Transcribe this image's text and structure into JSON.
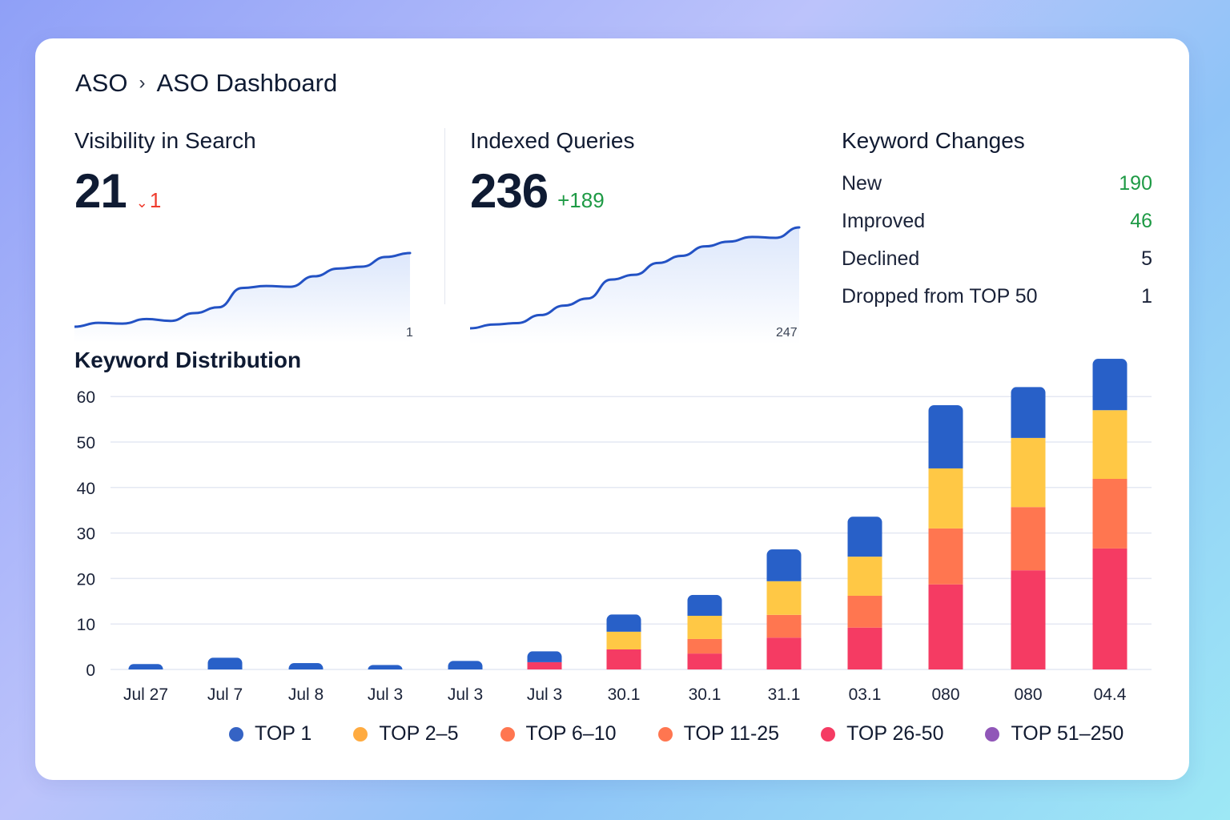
{
  "breadcrumb": {
    "root": "ASO",
    "separator": "›",
    "current": "ASO Dashboard"
  },
  "visibility": {
    "title": "Visibility in Search",
    "value": "21",
    "delta": "1",
    "delta_direction": "down",
    "delta_color": "#ef3b2d",
    "spark_end_label": "1",
    "spark_values": [
      2,
      3,
      2.8,
      4,
      3.5,
      5.5,
      7,
      12,
      12.5,
      12.3,
      15,
      17,
      17.5,
      20,
      21
    ]
  },
  "indexed_queries": {
    "title": "Indexed Queries",
    "value": "236",
    "delta": "+189",
    "delta_direction": "up",
    "delta_color": "#1e9a45",
    "spark_end_label": "247",
    "spark_values": [
      47,
      55,
      58,
      75,
      95,
      110,
      150,
      160,
      185,
      200,
      220,
      230,
      240,
      238,
      260
    ]
  },
  "keyword_changes": {
    "title": "Keyword Changes",
    "rows": [
      {
        "label": "New",
        "value": "190",
        "color": "green"
      },
      {
        "label": "Improved",
        "value": "46",
        "color": "green"
      },
      {
        "label": "Declined",
        "value": "5",
        "color": "default"
      },
      {
        "label": "Dropped from TOP 50",
        "value": "1",
        "color": "default"
      }
    ]
  },
  "chart_data": {
    "type": "bar",
    "stacked": true,
    "title": "Keyword Distribution",
    "xlabel": "",
    "ylabel": "",
    "ylim": [
      0,
      60
    ],
    "yticks": [
      0,
      10,
      20,
      30,
      40,
      50,
      60
    ],
    "grid": true,
    "legend_position": "bottom",
    "categories": [
      "Jul 27",
      "Jul 7",
      "Jul 8",
      "Jul 3",
      "Jul 3",
      "Jul 3",
      "30.1",
      "30.1",
      "31.1",
      "03.1",
      "080",
      "080",
      "04.4"
    ],
    "series": [
      {
        "name": "TOP 26-50",
        "color": "#f53b63",
        "values": [
          0,
          0,
          0,
          0,
          0,
          1.6,
          4.4,
          3.5,
          7.0,
          9.2,
          18.7,
          21.8,
          26.6
        ]
      },
      {
        "name": "TOP 11-25",
        "color": "#ff7650",
        "values": [
          0,
          0,
          0,
          0,
          0,
          0,
          0,
          3.2,
          5.0,
          7.0,
          12.3,
          13.9,
          15.3
        ]
      },
      {
        "name": "TOP 6-10",
        "color": "#ff7a52",
        "values": [
          0,
          0,
          0,
          0,
          0,
          0,
          0,
          0,
          0,
          0,
          0,
          0,
          0
        ]
      },
      {
        "name": "TOP 2-5",
        "color": "#ffc845",
        "values": [
          0,
          0,
          0,
          0,
          0,
          0,
          3.9,
          5.1,
          7.4,
          8.6,
          13.2,
          15.2,
          15.1
        ]
      },
      {
        "name": "TOP 1",
        "color": "#2860c8",
        "values": [
          1.2,
          2.6,
          1.4,
          1.0,
          1.9,
          2.4,
          3.8,
          4.6,
          7.0,
          8.8,
          13.9,
          11.2,
          11.3
        ]
      },
      {
        "name": "TOP 51-250",
        "color": "#8e52b8",
        "values": [
          0,
          0,
          0,
          0,
          0,
          0,
          0,
          0,
          0,
          0,
          0,
          0,
          0
        ]
      }
    ],
    "legend": [
      {
        "label": "TOP 1",
        "color": "#3563c4"
      },
      {
        "label": "TOP 2–5",
        "color": "#ffab40"
      },
      {
        "label": "TOP 6–10",
        "color": "#ff7650"
      },
      {
        "label": "TOP 11-25",
        "color": "#ff7650"
      },
      {
        "label": "TOP 26-50",
        "color": "#f53b63"
      },
      {
        "label": "TOP 51–250",
        "color": "#9056b8"
      }
    ]
  }
}
